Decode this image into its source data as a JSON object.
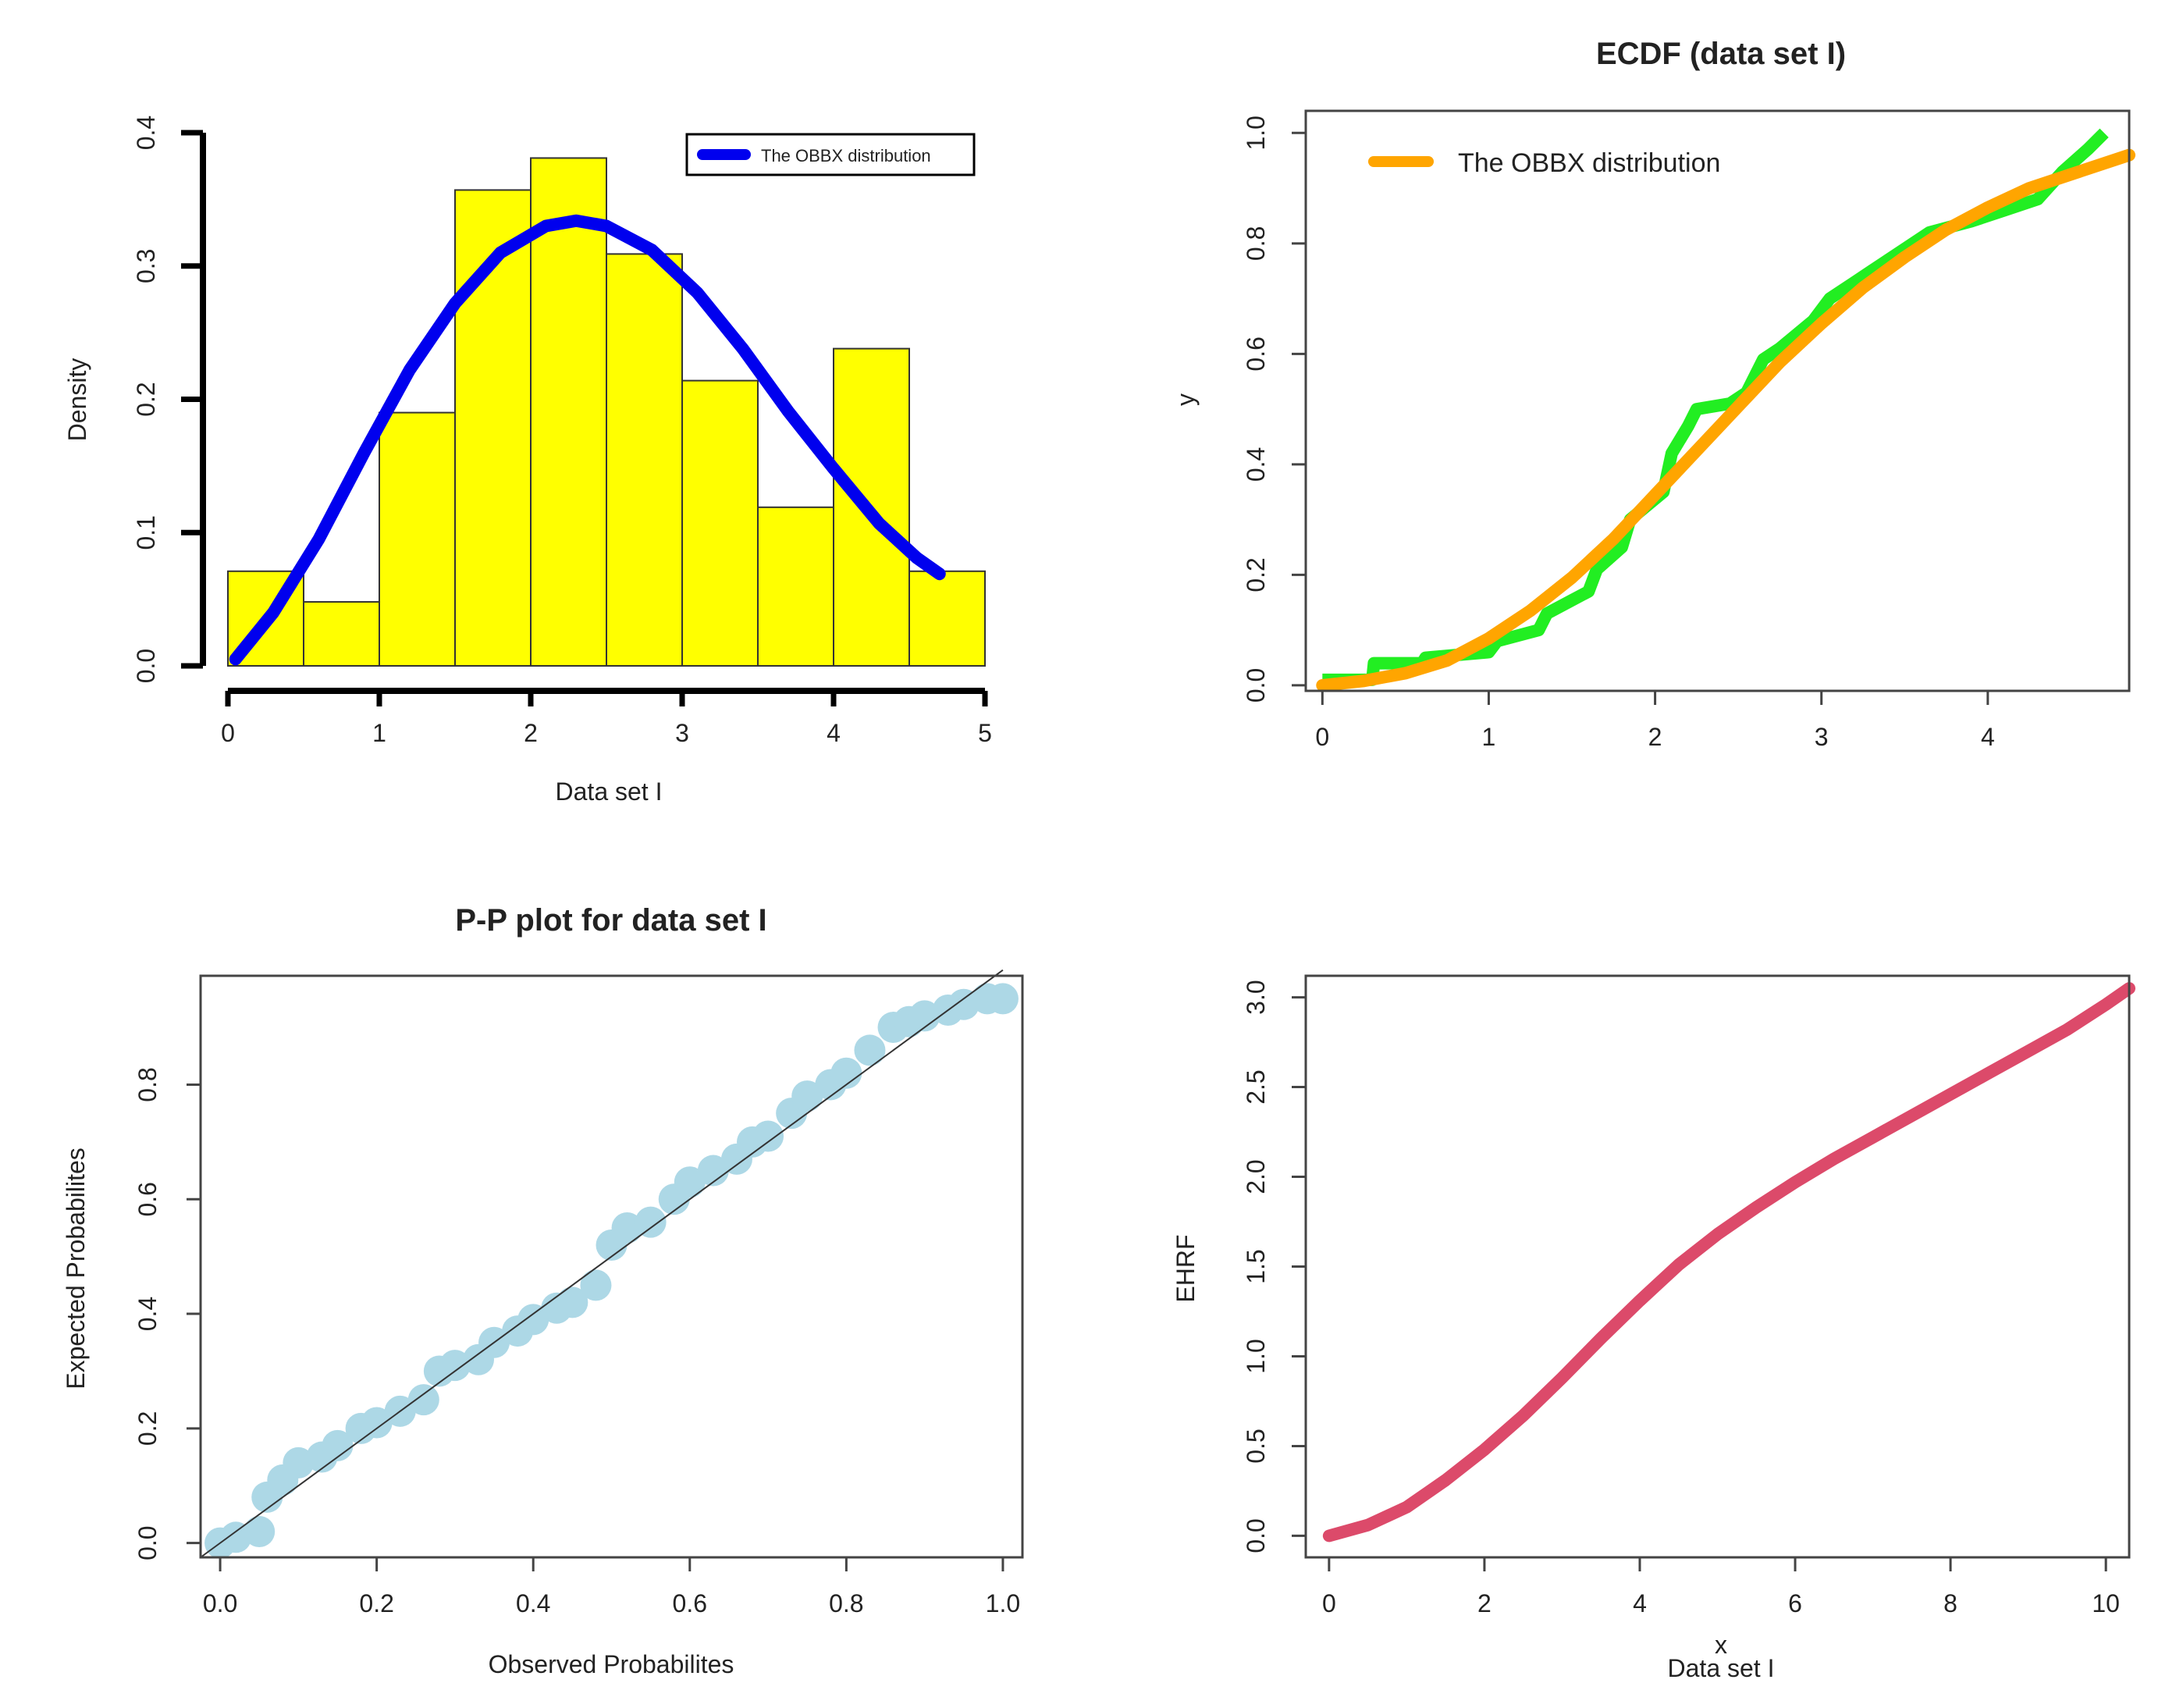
{
  "chart_data": [
    {
      "type": "bar",
      "panel": "histogram",
      "title": "",
      "xlabel": "Data set I",
      "ylabel": "Density",
      "xlim": [
        0,
        5
      ],
      "ylim": [
        0,
        0.4
      ],
      "xticks": [
        "0",
        "1",
        "2",
        "3",
        "4",
        "5"
      ],
      "yticks": [
        "0.0",
        "0.1",
        "0.2",
        "0.3",
        "0.4"
      ],
      "bin_width": 0.5,
      "bin_starts": [
        0,
        0.5,
        1,
        1.5,
        2,
        2.5,
        3,
        3.5,
        4,
        4.5
      ],
      "values": [
        0.071,
        0.048,
        0.19,
        0.357,
        0.381,
        0.309,
        0.214,
        0.119,
        0.238,
        0.071
      ],
      "bar_color": "#ffff00",
      "curve": {
        "name": "The OBBX distribution",
        "color": "#0000ee",
        "x": [
          0.05,
          0.3,
          0.6,
          0.9,
          1.2,
          1.5,
          1.8,
          2.1,
          2.3,
          2.5,
          2.8,
          3.1,
          3.4,
          3.7,
          4.0,
          4.3,
          4.55,
          4.7
        ],
        "y": [
          0.005,
          0.04,
          0.095,
          0.16,
          0.222,
          0.272,
          0.31,
          0.33,
          0.334,
          0.33,
          0.312,
          0.28,
          0.238,
          0.191,
          0.148,
          0.107,
          0.081,
          0.069
        ]
      },
      "legend": {
        "label": "The OBBX distribution",
        "position": "top-right"
      }
    },
    {
      "type": "line",
      "panel": "ecdf",
      "title": "ECDF (data set I)",
      "xlabel": "",
      "ylabel": "y",
      "xlim": [
        -0.1,
        4.85
      ],
      "ylim": [
        -0.01,
        1.04
      ],
      "xticks": [
        "0",
        "1",
        "2",
        "3",
        "4"
      ],
      "yticks": [
        "0.0",
        "0.2",
        "0.4",
        "0.6",
        "0.8",
        "1.0"
      ],
      "series": [
        {
          "name": "ECDF",
          "color": "#22ee22",
          "x": [
            0.0,
            0.3,
            0.31,
            0.6,
            0.62,
            1.0,
            1.05,
            1.3,
            1.35,
            1.6,
            1.65,
            1.8,
            1.85,
            2.05,
            2.1,
            2.2,
            2.25,
            2.45,
            2.55,
            2.65,
            2.75,
            2.95,
            3.05,
            3.2,
            3.3,
            3.5,
            3.65,
            3.9,
            4.1,
            4.3,
            4.45,
            4.6,
            4.7
          ],
          "values": [
            0.01,
            0.01,
            0.04,
            0.04,
            0.05,
            0.06,
            0.08,
            0.1,
            0.13,
            0.17,
            0.21,
            0.25,
            0.3,
            0.35,
            0.42,
            0.47,
            0.5,
            0.51,
            0.53,
            0.59,
            0.61,
            0.66,
            0.7,
            0.73,
            0.75,
            0.79,
            0.82,
            0.84,
            0.86,
            0.88,
            0.93,
            0.97,
            1.0
          ]
        },
        {
          "name": "The OBBX distribution",
          "color": "#ffa500",
          "x": [
            0.0,
            0.25,
            0.5,
            0.75,
            1.0,
            1.25,
            1.5,
            1.75,
            2.0,
            2.25,
            2.5,
            2.75,
            3.0,
            3.25,
            3.5,
            3.75,
            4.0,
            4.25,
            4.5,
            4.85
          ],
          "values": [
            0.0,
            0.008,
            0.022,
            0.045,
            0.085,
            0.135,
            0.195,
            0.265,
            0.345,
            0.425,
            0.505,
            0.585,
            0.655,
            0.72,
            0.775,
            0.825,
            0.865,
            0.9,
            0.925,
            0.96
          ]
        }
      ],
      "legend": {
        "label": "The OBBX distribution",
        "position": "top-left"
      }
    },
    {
      "type": "scatter",
      "panel": "pp-plot",
      "title": "P-P plot for data set I",
      "xlabel": "Observed Probabilites",
      "ylabel": "Expected Probabilites",
      "xlim": [
        -0.025,
        1.025
      ],
      "ylim": [
        -0.025,
        0.99
      ],
      "xticks": [
        "0.0",
        "0.2",
        "0.4",
        "0.6",
        "0.8",
        "1.0"
      ],
      "yticks": [
        "0.0",
        "0.2",
        "0.4",
        "0.6",
        "0.8"
      ],
      "point_color": "#add8e6",
      "reference_line": {
        "from": [
          -0.025,
          -0.025
        ],
        "to": [
          1.0,
          1.0
        ],
        "color": "#333333"
      },
      "x": [
        0.0,
        0.02,
        0.05,
        0.06,
        0.08,
        0.1,
        0.13,
        0.15,
        0.18,
        0.2,
        0.23,
        0.26,
        0.28,
        0.3,
        0.33,
        0.35,
        0.38,
        0.4,
        0.43,
        0.45,
        0.48,
        0.5,
        0.52,
        0.55,
        0.58,
        0.6,
        0.63,
        0.66,
        0.68,
        0.7,
        0.73,
        0.75,
        0.78,
        0.8,
        0.83,
        0.86,
        0.88,
        0.9,
        0.93,
        0.95,
        0.98,
        1.0
      ],
      "y": [
        0.0,
        0.01,
        0.02,
        0.08,
        0.11,
        0.14,
        0.15,
        0.17,
        0.2,
        0.21,
        0.23,
        0.25,
        0.3,
        0.31,
        0.32,
        0.35,
        0.37,
        0.39,
        0.41,
        0.42,
        0.45,
        0.52,
        0.55,
        0.56,
        0.6,
        0.63,
        0.65,
        0.67,
        0.7,
        0.71,
        0.75,
        0.78,
        0.8,
        0.82,
        0.86,
        0.9,
        0.91,
        0.92,
        0.93,
        0.94,
        0.95,
        0.95
      ]
    },
    {
      "type": "line",
      "panel": "ehrf",
      "title": "",
      "xlabel": "x",
      "xlabel2": "Data set I",
      "ylabel": "EHRF",
      "xlim": [
        -0.3,
        10.3
      ],
      "ylim": [
        -0.12,
        3.12
      ],
      "xticks": [
        "0",
        "2",
        "4",
        "6",
        "8",
        "10"
      ],
      "yticks": [
        "0.0",
        "0.5",
        "1.0",
        "1.5",
        "2.0",
        "2.5",
        "3.0"
      ],
      "series": [
        {
          "name": "EHRF",
          "color": "#dc4a6a",
          "x": [
            0,
            0.5,
            1,
            1.5,
            2,
            2.5,
            3,
            3.5,
            4,
            4.5,
            5,
            5.5,
            6,
            6.5,
            7,
            7.5,
            8,
            8.5,
            9,
            9.5,
            10,
            10.3
          ],
          "values": [
            0.0,
            0.06,
            0.16,
            0.31,
            0.48,
            0.67,
            0.88,
            1.1,
            1.31,
            1.51,
            1.68,
            1.83,
            1.97,
            2.1,
            2.22,
            2.34,
            2.46,
            2.58,
            2.7,
            2.82,
            2.96,
            3.05
          ]
        }
      ]
    }
  ]
}
